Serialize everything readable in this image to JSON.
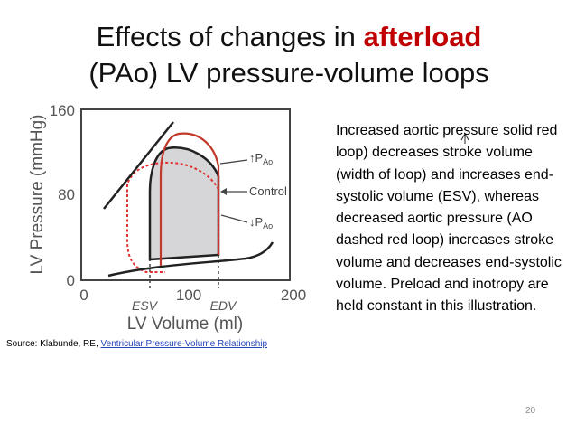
{
  "slide": {
    "title_prefix": "Effects of changes in ",
    "title_highlight": "afterload",
    "title_line2": "(PAo) LV pressure-volume loops",
    "body": "Increased aortic pressure solid red loop) decreases stroke volume (width of loop) and increases end-systolic volume (ESV), whereas decreased aortic pressure (AO dashed red loop) increases stroke volume and decreases end-systolic volume. Preload and inotropy are held constant in this illustration.",
    "source_prefix": "Source: Klabunde, RE, ",
    "source_link": "Ventricular Pressure-Volume Relationship",
    "slide_number": "20",
    "accent_color": "#c00000"
  },
  "figure": {
    "y_axis_label": "LV  Pressure (mmHg)",
    "x_axis_label": "LV  Volume (ml)",
    "y_ticks": [
      "0",
      "80",
      "160"
    ],
    "x_ticks": [
      "0",
      "100",
      "200"
    ],
    "esv_label": "ESV",
    "edv_label": "EDV",
    "label_increased": "↑P",
    "label_increased_sub": "Ao",
    "label_control": "Control",
    "label_decreased": "↓P",
    "label_decreased_sub": "Ao",
    "loop_colors": {
      "increased": "#c0392b",
      "control": "#222222",
      "decreased": "#e03030",
      "control_fill": "#d6d6d9"
    }
  }
}
